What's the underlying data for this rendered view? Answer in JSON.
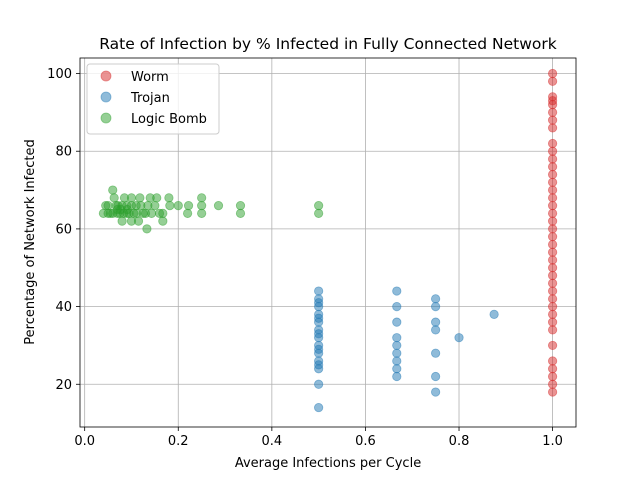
{
  "chart_data": {
    "type": "scatter",
    "title": "Rate of Infection by % Infected in Fully Connected Network",
    "xlabel": "Average Infections per Cycle",
    "ylabel": "Percentage of Network Infected",
    "xlim": [
      -0.01,
      1.05
    ],
    "ylim": [
      9,
      104
    ],
    "xticks": [
      0.0,
      0.2,
      0.4,
      0.6,
      0.8,
      1.0
    ],
    "xtick_labels": [
      "0.0",
      "0.2",
      "0.4",
      "0.6",
      "0.8",
      "1.0"
    ],
    "yticks": [
      20,
      40,
      60,
      80,
      100
    ],
    "ytick_labels": [
      "20",
      "40",
      "60",
      "80",
      "100"
    ],
    "grid": true,
    "legend_position": "top-left",
    "series": [
      {
        "name": "Worm",
        "color": "#d62728",
        "points": [
          [
            1.0,
            100
          ],
          [
            1.0,
            98
          ],
          [
            1.0,
            94
          ],
          [
            1.0,
            93
          ],
          [
            1.0,
            92
          ],
          [
            1.0,
            90
          ],
          [
            1.0,
            88
          ],
          [
            1.0,
            86
          ],
          [
            1.0,
            82
          ],
          [
            1.0,
            80
          ],
          [
            1.0,
            78
          ],
          [
            1.0,
            76
          ],
          [
            1.0,
            74
          ],
          [
            1.0,
            72
          ],
          [
            1.0,
            70
          ],
          [
            1.0,
            68
          ],
          [
            1.0,
            66
          ],
          [
            1.0,
            64
          ],
          [
            1.0,
            62
          ],
          [
            1.0,
            60
          ],
          [
            1.0,
            58
          ],
          [
            1.0,
            56
          ],
          [
            1.0,
            54
          ],
          [
            1.0,
            52
          ],
          [
            1.0,
            50
          ],
          [
            1.0,
            48
          ],
          [
            1.0,
            46
          ],
          [
            1.0,
            44
          ],
          [
            1.0,
            42
          ],
          [
            1.0,
            40
          ],
          [
            1.0,
            38
          ],
          [
            1.0,
            36
          ],
          [
            1.0,
            34
          ],
          [
            1.0,
            30
          ],
          [
            1.0,
            26
          ],
          [
            1.0,
            24
          ],
          [
            1.0,
            22
          ],
          [
            1.0,
            20
          ],
          [
            1.0,
            18
          ]
        ]
      },
      {
        "name": "Trojan",
        "color": "#1f77b4",
        "points": [
          [
            0.5,
            44
          ],
          [
            0.5,
            42
          ],
          [
            0.5,
            41
          ],
          [
            0.5,
            40
          ],
          [
            0.5,
            38
          ],
          [
            0.5,
            37
          ],
          [
            0.5,
            36
          ],
          [
            0.5,
            34
          ],
          [
            0.5,
            33
          ],
          [
            0.5,
            32
          ],
          [
            0.5,
            30
          ],
          [
            0.5,
            29
          ],
          [
            0.5,
            28
          ],
          [
            0.5,
            26
          ],
          [
            0.5,
            25
          ],
          [
            0.5,
            24
          ],
          [
            0.5,
            20
          ],
          [
            0.5,
            14
          ],
          [
            0.667,
            44
          ],
          [
            0.667,
            40
          ],
          [
            0.667,
            36
          ],
          [
            0.667,
            32
          ],
          [
            0.667,
            30
          ],
          [
            0.667,
            28
          ],
          [
            0.667,
            26
          ],
          [
            0.667,
            24
          ],
          [
            0.667,
            22
          ],
          [
            0.75,
            42
          ],
          [
            0.75,
            40
          ],
          [
            0.75,
            36
          ],
          [
            0.75,
            34
          ],
          [
            0.75,
            28
          ],
          [
            0.75,
            22
          ],
          [
            0.75,
            18
          ],
          [
            0.8,
            32
          ],
          [
            0.875,
            38
          ]
        ]
      },
      {
        "name": "Logic Bomb",
        "color": "#2ca02c",
        "points": [
          [
            0.04,
            64
          ],
          [
            0.045,
            66
          ],
          [
            0.05,
            64
          ],
          [
            0.05,
            66
          ],
          [
            0.055,
            64
          ],
          [
            0.06,
            70
          ],
          [
            0.06,
            64
          ],
          [
            0.063,
            68
          ],
          [
            0.067,
            66
          ],
          [
            0.07,
            64
          ],
          [
            0.07,
            65
          ],
          [
            0.071,
            66
          ],
          [
            0.075,
            64
          ],
          [
            0.077,
            65
          ],
          [
            0.08,
            62
          ],
          [
            0.08,
            66
          ],
          [
            0.083,
            64
          ],
          [
            0.085,
            68
          ],
          [
            0.09,
            64
          ],
          [
            0.09,
            66
          ],
          [
            0.091,
            65
          ],
          [
            0.095,
            64
          ],
          [
            0.1,
            62
          ],
          [
            0.1,
            66
          ],
          [
            0.1,
            68
          ],
          [
            0.105,
            64
          ],
          [
            0.11,
            66
          ],
          [
            0.111,
            64
          ],
          [
            0.115,
            62
          ],
          [
            0.118,
            68
          ],
          [
            0.12,
            66
          ],
          [
            0.125,
            64
          ],
          [
            0.13,
            64
          ],
          [
            0.133,
            60
          ],
          [
            0.135,
            66
          ],
          [
            0.14,
            68
          ],
          [
            0.143,
            64
          ],
          [
            0.15,
            66
          ],
          [
            0.154,
            68
          ],
          [
            0.16,
            64
          ],
          [
            0.167,
            62
          ],
          [
            0.167,
            64
          ],
          [
            0.18,
            68
          ],
          [
            0.182,
            66
          ],
          [
            0.2,
            66
          ],
          [
            0.22,
            64
          ],
          [
            0.222,
            66
          ],
          [
            0.25,
            68
          ],
          [
            0.25,
            66
          ],
          [
            0.25,
            64
          ],
          [
            0.286,
            66
          ],
          [
            0.333,
            66
          ],
          [
            0.333,
            64
          ],
          [
            0.5,
            66
          ],
          [
            0.5,
            64
          ]
        ]
      }
    ]
  }
}
